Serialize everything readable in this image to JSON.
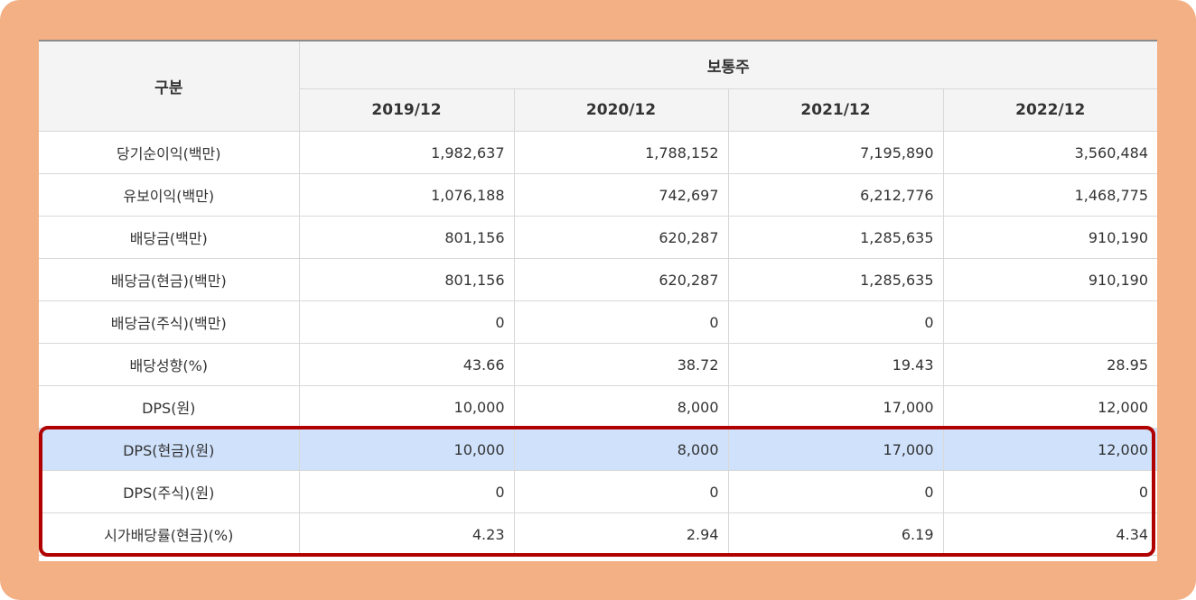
{
  "table": {
    "header": {
      "category_label": "구분",
      "group_label": "보통주",
      "periods": [
        "2019/12",
        "2020/12",
        "2021/12",
        "2022/12"
      ]
    },
    "rows": [
      {
        "label": "당기순이익(백만)",
        "values": [
          "1,982,637",
          "1,788,152",
          "7,195,890",
          "3,560,484"
        ]
      },
      {
        "label": "유보이익(백만)",
        "values": [
          "1,076,188",
          "742,697",
          "6,212,776",
          "1,468,775"
        ]
      },
      {
        "label": "배당금(백만)",
        "values": [
          "801,156",
          "620,287",
          "1,285,635",
          "910,190"
        ]
      },
      {
        "label": "배당금(현금)(백만)",
        "values": [
          "801,156",
          "620,287",
          "1,285,635",
          "910,190"
        ]
      },
      {
        "label": "배당금(주식)(백만)",
        "values": [
          "0",
          "0",
          "0",
          ""
        ]
      },
      {
        "label": "배당성향(%)",
        "values": [
          "43.66",
          "38.72",
          "19.43",
          "28.95"
        ]
      },
      {
        "label": "DPS(원)",
        "values": [
          "10,000",
          "8,000",
          "17,000",
          "12,000"
        ]
      },
      {
        "label": "DPS(현금)(원)",
        "values": [
          "10,000",
          "8,000",
          "17,000",
          "12,000"
        ]
      },
      {
        "label": "DPS(주식)(원)",
        "values": [
          "0",
          "0",
          "0",
          "0"
        ]
      },
      {
        "label": "시가배당률(현금)(%)",
        "values": [
          "4.23",
          "2.94",
          "6.19",
          "4.34"
        ]
      }
    ]
  },
  "colors": {
    "frame": "#f2b084",
    "highlight_row": "#cfe1fb",
    "highlight_box": "#b00000",
    "header_bg": "#f4f4f4"
  }
}
